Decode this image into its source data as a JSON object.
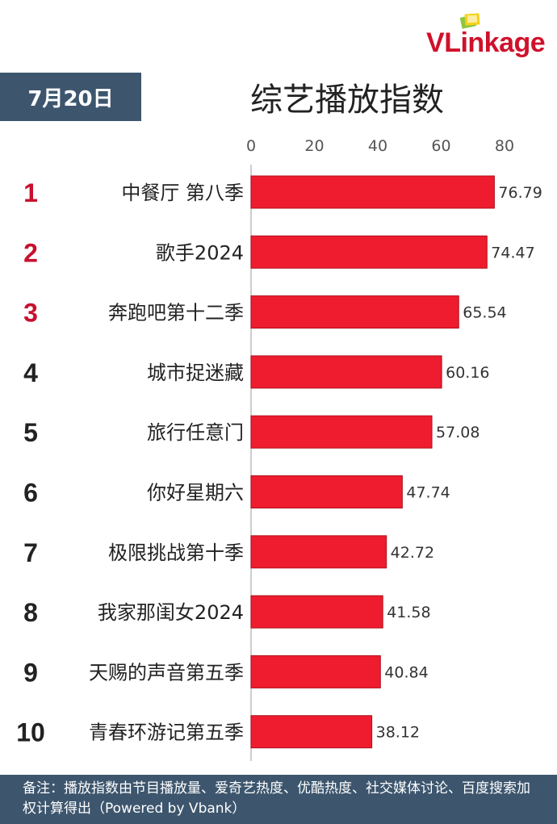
{
  "header": {
    "date_label": "7月20日",
    "title": "综艺播放指数"
  },
  "logo": {
    "name": "VLinkage",
    "v": "V",
    "rest": "Linkage",
    "accent_color": "#d0112b"
  },
  "footer": {
    "note": "备注：播放指数由节目播放量、爱奇艺热度、优酷热度、社交媒体讨论、百度搜索加权计算得出（Powered by Vbank）"
  },
  "colors": {
    "bar": "#ee1c2e",
    "bar_edge": "#b0101d",
    "rank_top": "#c8102e",
    "rank_other": "#222222",
    "header_bg": "#3d566e"
  },
  "chart_data": {
    "type": "bar",
    "orientation": "horizontal",
    "title": "综艺播放指数",
    "xlim": [
      0,
      80
    ],
    "ticks": [
      0,
      20,
      40,
      60,
      80
    ],
    "tick_labels": [
      "0",
      "20",
      "40",
      "60",
      "80"
    ],
    "grid": false,
    "ranks": [
      "1",
      "2",
      "3",
      "4",
      "5",
      "6",
      "7",
      "8",
      "9",
      "10"
    ],
    "categories": [
      "中餐厅 第八季",
      "歌手2024",
      "奔跑吧第十二季",
      "城市捉迷藏",
      "旅行任意门",
      "你好星期六",
      "极限挑战第十季",
      "我家那闺女2024",
      "天赐的声音第五季",
      "青春环游记第五季"
    ],
    "values": [
      76.79,
      74.47,
      65.54,
      60.16,
      57.08,
      47.74,
      42.72,
      41.58,
      40.84,
      38.12
    ],
    "value_labels": [
      "76.79",
      "74.47",
      "65.54",
      "60.16",
      "57.08",
      "47.74",
      "42.72",
      "41.58",
      "40.84",
      "38.12"
    ]
  }
}
